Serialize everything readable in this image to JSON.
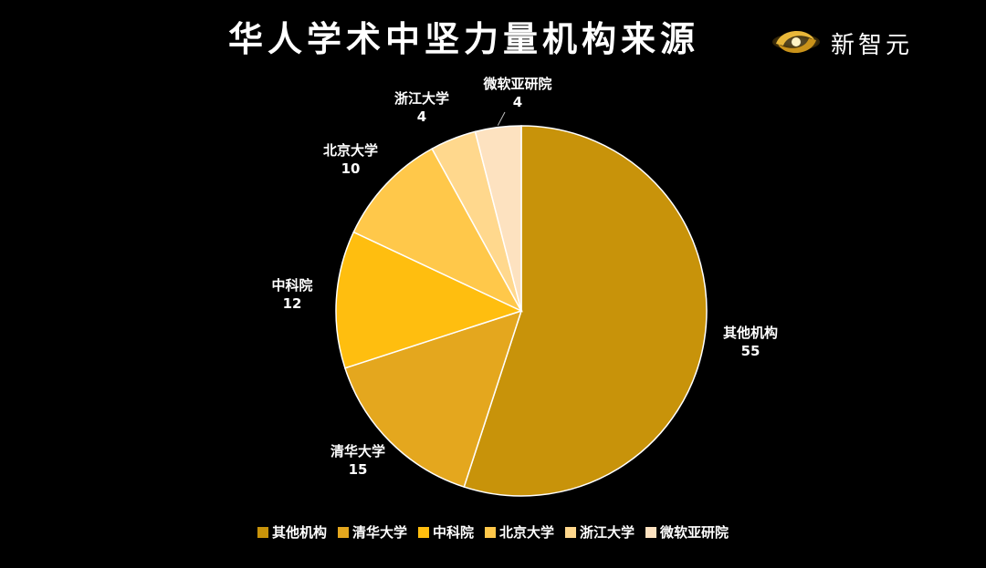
{
  "brand": {
    "name": "新智元",
    "logo_icon": "swirl-logo-icon"
  },
  "chart_data": {
    "type": "pie",
    "title": "华人学术中坚力量机构来源",
    "categories": [
      "其他机构",
      "清华大学",
      "中科院",
      "北京大学",
      "浙江大学",
      "微软亚研院"
    ],
    "values": [
      55,
      15,
      12,
      10,
      4,
      4
    ],
    "colors": [
      "#C8930A",
      "#E4A71E",
      "#FFBE0F",
      "#FFC84A",
      "#FFD88D",
      "#FDE2C0"
    ],
    "data_labels": true,
    "legend": "bottom",
    "start_angle_deg": 0,
    "direction": "clockwise"
  }
}
